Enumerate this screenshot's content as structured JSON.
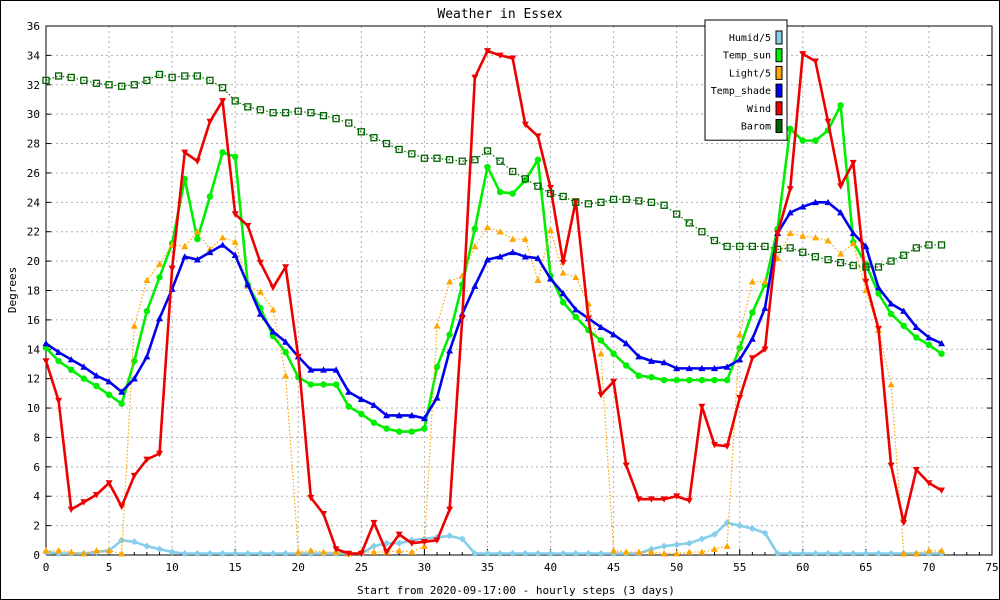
{
  "chart_data": {
    "type": "line",
    "title": "Weather in Essex",
    "xlabel": "Start from 2020-09-17:00 - hourly steps (3 days)",
    "ylabel": "Degrees",
    "xlim": [
      0,
      75
    ],
    "ylim": [
      0,
      36
    ],
    "xticks": [
      0,
      5,
      10,
      15,
      20,
      25,
      30,
      35,
      40,
      45,
      50,
      55,
      60,
      65,
      70,
      75
    ],
    "yticks": [
      0,
      2,
      4,
      6,
      8,
      10,
      12,
      14,
      16,
      18,
      20,
      22,
      24,
      26,
      28,
      30,
      32,
      34,
      36
    ],
    "grid": true,
    "legend_position": "top-right",
    "series": [
      {
        "name": "Humid/5",
        "color": "#87ceeb",
        "marker": "diamond",
        "style": "solid",
        "values": [
          0.2,
          0.1,
          0.1,
          0.1,
          0.2,
          0.3,
          1.0,
          0.9,
          0.6,
          0.4,
          0.2,
          0.1,
          0.1,
          0.1,
          0.1,
          0.1,
          0.1,
          0.1,
          0.1,
          0.1,
          0.1,
          0.1,
          0.1,
          0.1,
          0.1,
          0.1,
          0.6,
          0.8,
          0.8,
          1.0,
          1.1,
          1.2,
          1.3,
          1.1,
          0.1,
          0.1,
          0.1,
          0.1,
          0.1,
          0.1,
          0.1,
          0.1,
          0.1,
          0.1,
          0.1,
          0.1,
          0.1,
          0.1,
          0.4,
          0.6,
          0.7,
          0.8,
          1.1,
          1.4,
          2.2,
          2.0,
          1.8,
          1.5,
          0.1,
          0.1,
          0.1,
          0.1,
          0.1,
          0.1,
          0.1,
          0.1,
          0.1,
          0.1,
          0.1,
          0.1,
          0.1,
          0.1
        ]
      },
      {
        "name": "Temp_sun",
        "color": "#00ee00",
        "marker": "circle",
        "style": "solid",
        "values": [
          14.1,
          13.2,
          12.6,
          12.0,
          11.5,
          10.9,
          10.3,
          13.2,
          16.6,
          18.9,
          21.2,
          25.6,
          21.5,
          24.4,
          27.4,
          27.1,
          18.4,
          16.8,
          14.9,
          13.8,
          12.1,
          11.6,
          11.6,
          11.6,
          10.1,
          9.6,
          9.0,
          8.6,
          8.4,
          8.4,
          8.6,
          12.8,
          15.0,
          18.4,
          22.2,
          26.4,
          24.7,
          24.6,
          25.5,
          26.9,
          19.0,
          17.2,
          16.2,
          15.3,
          14.6,
          13.7,
          12.9,
          12.2,
          12.1,
          11.9,
          11.9,
          11.9,
          11.9,
          11.9,
          11.9,
          14.1,
          16.5,
          18.4,
          22.2,
          29.0,
          28.2,
          28.2,
          28.9,
          30.6,
          21.3,
          19.8,
          17.8,
          16.4,
          15.6,
          14.8,
          14.3,
          13.7
        ]
      },
      {
        "name": "Light/5",
        "color": "#ffa500",
        "marker": "triangle",
        "style": "dotted",
        "values": [
          0.3,
          0.3,
          0.2,
          0.1,
          0.3,
          0.3,
          0.1,
          15.6,
          18.7,
          19.8,
          21.1,
          21.0,
          22.0,
          20.8,
          21.6,
          21.3,
          18.3,
          17.9,
          16.7,
          12.2,
          0.2,
          0.3,
          0.2,
          0.2,
          0.1,
          0.2,
          0.2,
          0.2,
          0.3,
          0.2,
          0.6,
          15.6,
          18.6,
          19.0,
          21.0,
          22.3,
          22.0,
          21.5,
          21.5,
          18.7,
          22.1,
          19.2,
          18.9,
          17.1,
          13.7,
          0.3,
          0.2,
          0.2,
          0.2,
          0.1,
          0.1,
          0.2,
          0.2,
          0.4,
          0.6,
          15.0,
          18.6,
          18.6,
          20.2,
          21.9,
          21.7,
          21.6,
          21.4,
          20.5,
          21.2,
          18.0,
          15.3,
          11.6,
          0.1,
          0.1,
          0.3,
          0.3
        ]
      },
      {
        "name": "Temp_shade",
        "color": "#0000ee",
        "marker": "triangle",
        "style": "solid",
        "values": [
          14.4,
          13.8,
          13.3,
          12.8,
          12.2,
          11.8,
          11.1,
          12.0,
          13.5,
          16.1,
          18.1,
          20.3,
          20.1,
          20.6,
          21.1,
          20.4,
          18.4,
          16.4,
          15.2,
          14.5,
          13.5,
          12.6,
          12.6,
          12.6,
          11.1,
          10.6,
          10.2,
          9.5,
          9.5,
          9.5,
          9.3,
          10.7,
          13.9,
          16.4,
          18.3,
          20.1,
          20.3,
          20.6,
          20.3,
          20.2,
          18.8,
          17.8,
          16.7,
          16.1,
          15.5,
          15.0,
          14.4,
          13.5,
          13.2,
          13.1,
          12.7,
          12.7,
          12.7,
          12.7,
          12.8,
          13.3,
          14.7,
          16.8,
          21.9,
          23.3,
          23.7,
          24.0,
          24.0,
          23.3,
          21.9,
          21.0,
          18.2,
          17.1,
          16.6,
          15.5,
          14.8,
          14.4
        ]
      },
      {
        "name": "Wind",
        "color": "#ee0000",
        "marker": "invtriangle",
        "style": "solid",
        "values": [
          13.2,
          10.5,
          3.1,
          3.6,
          4.1,
          4.9,
          3.3,
          5.4,
          6.5,
          6.9,
          19.5,
          27.4,
          26.8,
          29.5,
          30.9,
          23.2,
          22.4,
          19.9,
          18.2,
          19.6,
          13.5,
          3.9,
          2.8,
          0.4,
          0.1,
          0.1,
          2.2,
          0.2,
          1.4,
          0.8,
          0.9,
          1.0,
          3.1,
          16.1,
          32.5,
          34.3,
          34.0,
          33.8,
          29.3,
          28.5,
          25.0,
          19.9,
          24.1,
          16.1,
          10.9,
          11.8,
          6.1,
          3.8,
          3.8,
          3.8,
          4.0,
          3.7,
          10.1,
          7.5,
          7.4,
          10.7,
          13.4,
          14.0,
          21.9,
          24.9,
          34.1,
          33.6,
          29.5,
          25.1,
          26.7,
          18.6,
          15.4,
          6.1,
          2.2,
          5.8,
          4.9,
          4.4
        ]
      },
      {
        "name": "Barom",
        "color": "#006400",
        "marker": "square",
        "style": "dotted",
        "values": [
          32.3,
          32.6,
          32.5,
          32.3,
          32.1,
          32.0,
          31.9,
          32.0,
          32.3,
          32.7,
          32.5,
          32.6,
          32.6,
          32.3,
          31.8,
          30.9,
          30.5,
          30.3,
          30.1,
          30.1,
          30.2,
          30.1,
          29.9,
          29.7,
          29.4,
          28.8,
          28.4,
          28.0,
          27.6,
          27.3,
          27.0,
          27.0,
          26.9,
          26.8,
          26.9,
          27.5,
          26.8,
          26.1,
          25.6,
          25.1,
          24.6,
          24.4,
          24.0,
          23.9,
          24.0,
          24.2,
          24.2,
          24.1,
          24.0,
          23.8,
          23.2,
          22.6,
          22.0,
          21.4,
          21.0,
          21.0,
          21.0,
          21.0,
          20.8,
          20.9,
          20.6,
          20.3,
          20.1,
          19.9,
          19.7,
          19.6,
          19.6,
          20.0,
          20.4,
          20.9,
          21.1,
          21.1
        ]
      }
    ]
  }
}
